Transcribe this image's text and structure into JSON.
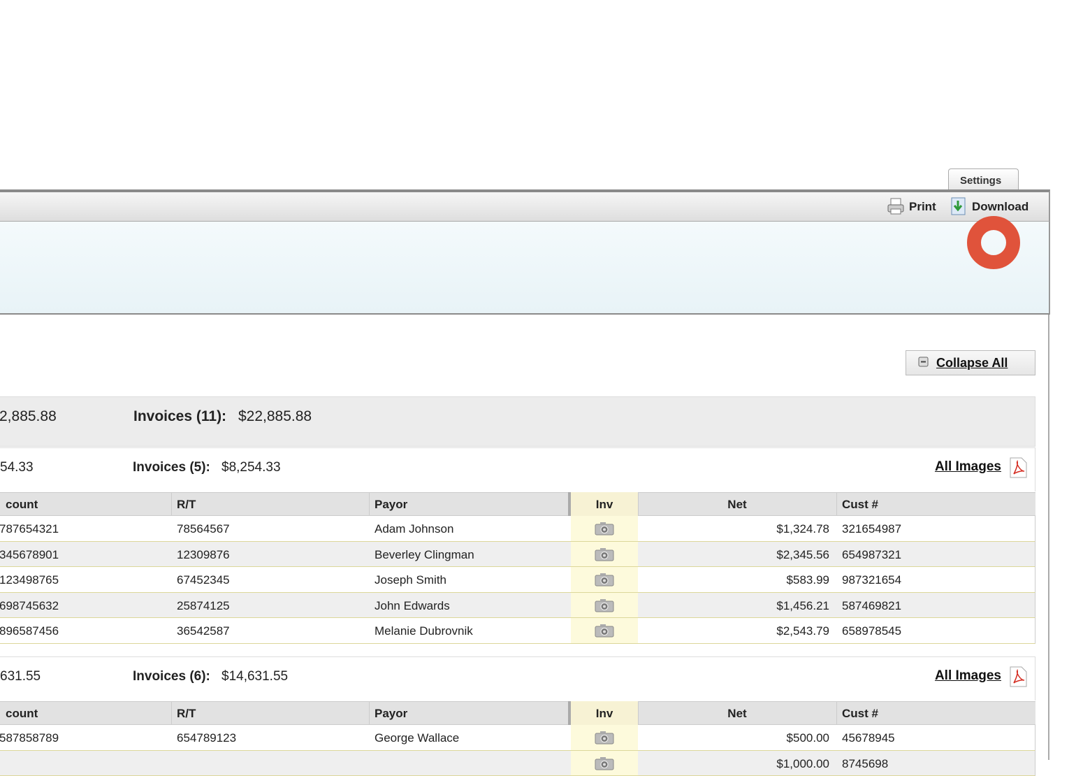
{
  "toolbar": {
    "settings": "Settings",
    "print": "Print",
    "download": "Download"
  },
  "collapse_all": "Collapse All",
  "summary": {
    "total_partial": "2,885.88",
    "label": "Invoices (11):",
    "amount": "$22,885.88"
  },
  "groups": [
    {
      "total_partial": "54.33",
      "label": "Invoices (5):",
      "amount": "$8,254.33",
      "all_images": "All Images",
      "columns": [
        "count",
        "R/T",
        "Payor",
        "Inv",
        "Net",
        "Cust #"
      ],
      "rows": [
        {
          "account": "787654321",
          "rt": "78564567",
          "payor": "Adam Johnson",
          "net": "$1,324.78",
          "cust": "321654987"
        },
        {
          "account": "345678901",
          "rt": "12309876",
          "payor": "Beverley Clingman",
          "net": "$2,345.56",
          "cust": "654987321"
        },
        {
          "account": "123498765",
          "rt": "67452345",
          "payor": "Joseph Smith",
          "net": "$583.99",
          "cust": "987321654"
        },
        {
          "account": "698745632",
          "rt": "25874125",
          "payor": "John Edwards",
          "net": "$1,456.21",
          "cust": "587469821"
        },
        {
          "account": "896587456",
          "rt": "36542587",
          "payor": "Melanie Dubrovnik",
          "net": "$2,543.79",
          "cust": "658978545"
        }
      ]
    },
    {
      "total_partial": "631.55",
      "label": "Invoices (6):",
      "amount": "$14,631.55",
      "all_images": "All Images",
      "columns": [
        "count",
        "R/T",
        "Payor",
        "Inv",
        "Net",
        "Cust #"
      ],
      "rows": [
        {
          "account": "587858789",
          "rt": "654789123",
          "payor": "George Wallace",
          "net": "$500.00",
          "cust": "45678945"
        },
        {
          "net": "$1,000.00",
          "cust": "8745698"
        }
      ]
    }
  ]
}
